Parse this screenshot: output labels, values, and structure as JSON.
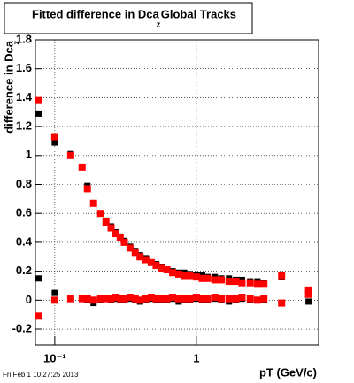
{
  "chart_data": {
    "type": "scatter",
    "title": [
      "Fitted difference in Dca",
      "z",
      "Global Tracks"
    ],
    "ylabel": [
      "difference in Dca",
      "z"
    ],
    "xlabel": "pT (GeV/c)",
    "footer": "Fri Feb  1 10:27:25 2013",
    "xlog": true,
    "grid": true,
    "xlim": [
      0.073,
      7.3
    ],
    "ylim": [
      -0.31,
      1.8
    ],
    "xticks": [
      {
        "value": 0.1,
        "label": "10⁻¹"
      },
      1
    ],
    "yticks": [
      -0.2,
      0,
      0.2,
      0.4,
      0.6,
      0.8,
      1,
      1.2,
      1.4,
      1.6,
      1.8
    ],
    "x": [
      0.0772,
      0.1,
      0.1296,
      0.156,
      0.17,
      0.188,
      0.211,
      0.23,
      0.25,
      0.27,
      0.29,
      0.31,
      0.34,
      0.37,
      0.4,
      0.44,
      0.48,
      0.52,
      0.57,
      0.62,
      0.68,
      0.75,
      0.82,
      0.9,
      1.0,
      1.1,
      1.2,
      1.35,
      1.5,
      1.7,
      1.9,
      2.1,
      2.4,
      2.7,
      3.0,
      4.0,
      6.2
    ],
    "series": [
      {
        "color": "#000000",
        "values": [
          1.29,
          1.09,
          1.01,
          0.92,
          0.79,
          0.67,
          0.6,
          0.55,
          0.51,
          0.47,
          0.44,
          0.41,
          0.37,
          0.34,
          0.31,
          0.29,
          0.26,
          0.25,
          0.23,
          0.21,
          0.2,
          0.19,
          0.19,
          0.18,
          0.17,
          0.17,
          0.16,
          0.16,
          0.15,
          0.15,
          0.14,
          0.14,
          0.13,
          0.13,
          0.12,
          0.16,
          0.04
        ]
      },
      {
        "color": "#ff0000",
        "values": [
          1.38,
          1.13,
          1.0,
          0.92,
          0.77,
          0.67,
          0.6,
          0.54,
          0.5,
          0.46,
          0.43,
          0.4,
          0.36,
          0.33,
          0.3,
          0.28,
          0.26,
          0.24,
          0.22,
          0.21,
          0.19,
          0.18,
          0.17,
          0.17,
          0.16,
          0.15,
          0.15,
          0.14,
          0.14,
          0.13,
          0.13,
          0.12,
          0.12,
          0.11,
          0.11,
          0.17,
          0.07
        ]
      },
      {
        "color": "#000000",
        "values": [
          0.15,
          0.05,
          0.01,
          0.01,
          0.0,
          -0.02,
          0.0,
          0.01,
          0.0,
          0.01,
          0.0,
          0.0,
          0.01,
          0.0,
          -0.01,
          0.0,
          0.01,
          0.0,
          0.0,
          0.0,
          0.01,
          -0.01,
          0.0,
          0.0,
          0.01,
          0.0,
          0.0,
          0.01,
          0.0,
          -0.01,
          0.0,
          0.01,
          0.0,
          0.0,
          0.0,
          null,
          -0.01
        ]
      },
      {
        "color": "#ff0000",
        "values": [
          -0.11,
          0.0,
          0.01,
          0.01,
          0.01,
          0.0,
          0.01,
          0.01,
          0.01,
          0.02,
          0.01,
          0.01,
          0.02,
          0.01,
          0.0,
          0.01,
          0.02,
          0.01,
          0.01,
          0.01,
          0.02,
          0.01,
          0.01,
          0.01,
          0.02,
          0.01,
          0.01,
          0.02,
          0.01,
          0.01,
          0.01,
          0.02,
          0.01,
          0.0,
          0.01,
          -0.02,
          0.04
        ]
      }
    ]
  }
}
